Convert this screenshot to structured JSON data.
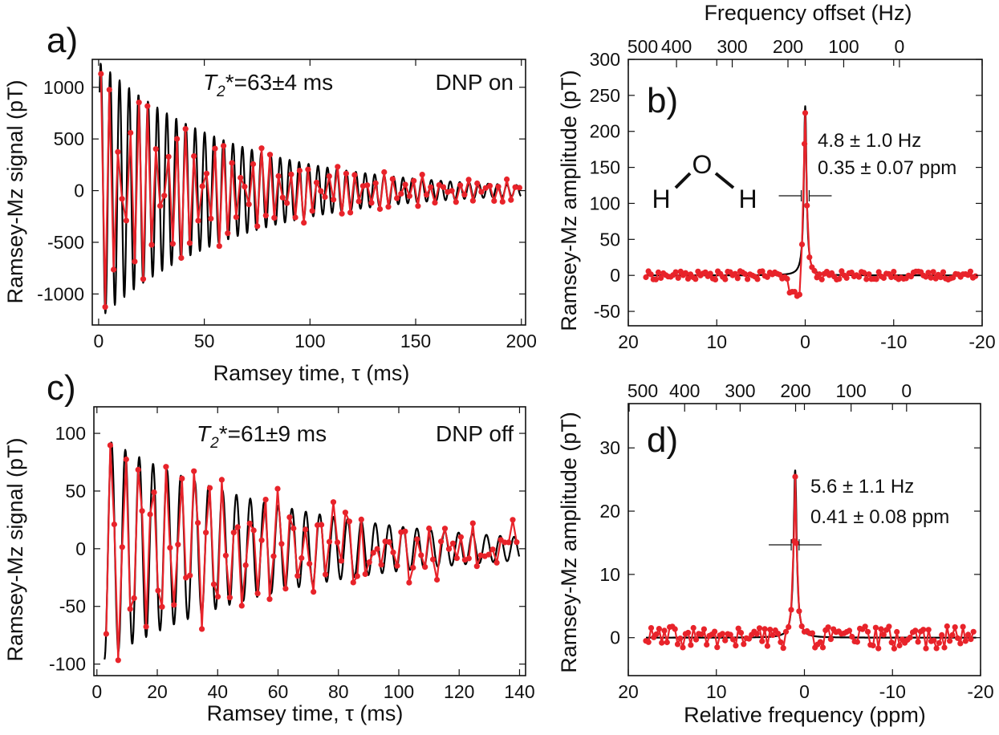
{
  "colors": {
    "data": "#e8232a",
    "fit": "#000000",
    "axis": "#111111"
  },
  "chart_data": [
    {
      "id": "a",
      "type": "line",
      "panel_label": "a)",
      "xlabel": "Ramsey time, τ (ms)",
      "ylabel": "Ramsey-Mz signal (pT)",
      "xlim": [
        -3,
        202
      ],
      "ylim": [
        -1300,
        1270
      ],
      "xticks": [
        0,
        50,
        100,
        150,
        200
      ],
      "yticks": [
        -1000,
        -500,
        0,
        500,
        1000
      ],
      "annotation_T2": "63±4 ms",
      "annotation_T2_symbol": "T",
      "annotation_T2_sub": "2",
      "annotation_T2_star": "*=",
      "annotation_mode": "DNP on",
      "model": {
        "amplitude": 1250,
        "t2_ms": 63,
        "period_ms": 4.47,
        "phase": -1.4,
        "t_start": 0.5,
        "t_end": 200,
        "sample_dt": 2,
        "noise": 60
      },
      "series": [
        {
          "name": "",
          "role": "fit"
        },
        {
          "name": "",
          "role": "data"
        }
      ]
    },
    {
      "id": "b",
      "type": "line",
      "panel_label": "b)",
      "xlabel": "",
      "ylabel": "Ramsey-Mz amplitude (pT)",
      "top_xlabel": "Frequency offset (Hz)",
      "xlim": [
        20,
        -20
      ],
      "ylim": [
        -70,
        300
      ],
      "xticks": [
        20,
        10,
        0,
        -10,
        -20
      ],
      "xtick_labels": [
        "20",
        "10",
        "0",
        "-10",
        "-20"
      ],
      "yticks": [
        -50,
        0,
        50,
        100,
        150,
        200,
        250,
        300
      ],
      "top_xticks": [
        500,
        400,
        300,
        200,
        100,
        0
      ],
      "top_tick_positions_ppm": [
        20.85,
        14.55,
        8.25,
        1.95,
        -4.35,
        -10.65
      ],
      "annotation_width_hz": "4.8 ± 1.0 Hz",
      "annotation_width_ppm": "0.35 ± 0.07 ppm",
      "molecule": {
        "center": "O",
        "left": "H",
        "right": "H"
      },
      "model": {
        "peak_ppm": 0.0,
        "height": 235,
        "hwhm_ppm": 0.18,
        "x_start": 18,
        "x_end": -19.5,
        "step": 0.28,
        "noise": 6
      },
      "series": [
        {
          "name": "",
          "role": "fit"
        },
        {
          "name": "",
          "role": "data"
        }
      ]
    },
    {
      "id": "c",
      "type": "line",
      "panel_label": "c)",
      "xlabel": "Ramsey time, τ (ms)",
      "ylabel": "Ramsey-Mz signal (pT)",
      "xlim": [
        -1,
        142
      ],
      "ylim": [
        -110,
        123
      ],
      "xticks": [
        0,
        20,
        40,
        60,
        80,
        100,
        120,
        140
      ],
      "yticks": [
        -100,
        -50,
        0,
        50,
        100
      ],
      "annotation_T2": "61±9 ms",
      "annotation_T2_symbol": "T",
      "annotation_T2_sub": "2",
      "annotation_T2_star": "*=",
      "annotation_mode": "DNP off",
      "model": {
        "amplitude": 100,
        "t2_ms": 61,
        "period_ms": 4.6,
        "phase": -0.3,
        "t_start": 2.5,
        "t_end": 140,
        "sample_dt": 1.32,
        "noise": 18
      },
      "series": [
        {
          "name": "",
          "role": "fit"
        },
        {
          "name": "",
          "role": "data"
        }
      ]
    },
    {
      "id": "d",
      "type": "line",
      "panel_label": "d)",
      "xlabel": "Relative frequency (ppm)",
      "ylabel": "Ramsey-Mz amplitude (pT)",
      "xlim": [
        20,
        -20
      ],
      "ylim": [
        -6,
        37
      ],
      "xticks": [
        20,
        10,
        0,
        -10,
        -20
      ],
      "xtick_labels": [
        "20",
        "10",
        "0",
        "-10",
        "-20"
      ],
      "yticks": [
        0,
        10,
        20,
        30
      ],
      "top_xticks": [
        500,
        400,
        300,
        200,
        100,
        0
      ],
      "top_tick_positions_ppm": [
        19.9,
        13.6,
        7.3,
        1.0,
        -5.3,
        -11.6
      ],
      "annotation_width_hz": "5.6 ± 1.1 Hz",
      "annotation_width_ppm": "0.41 ± 0.08 ppm",
      "model": {
        "peak_ppm": 1.05,
        "height": 26.5,
        "hwhm_ppm": 0.21,
        "x_start": 18,
        "x_end": -19.5,
        "step": 0.3,
        "noise": 1.8
      },
      "series": [
        {
          "name": "",
          "role": "fit"
        },
        {
          "name": "",
          "role": "data"
        }
      ]
    }
  ]
}
